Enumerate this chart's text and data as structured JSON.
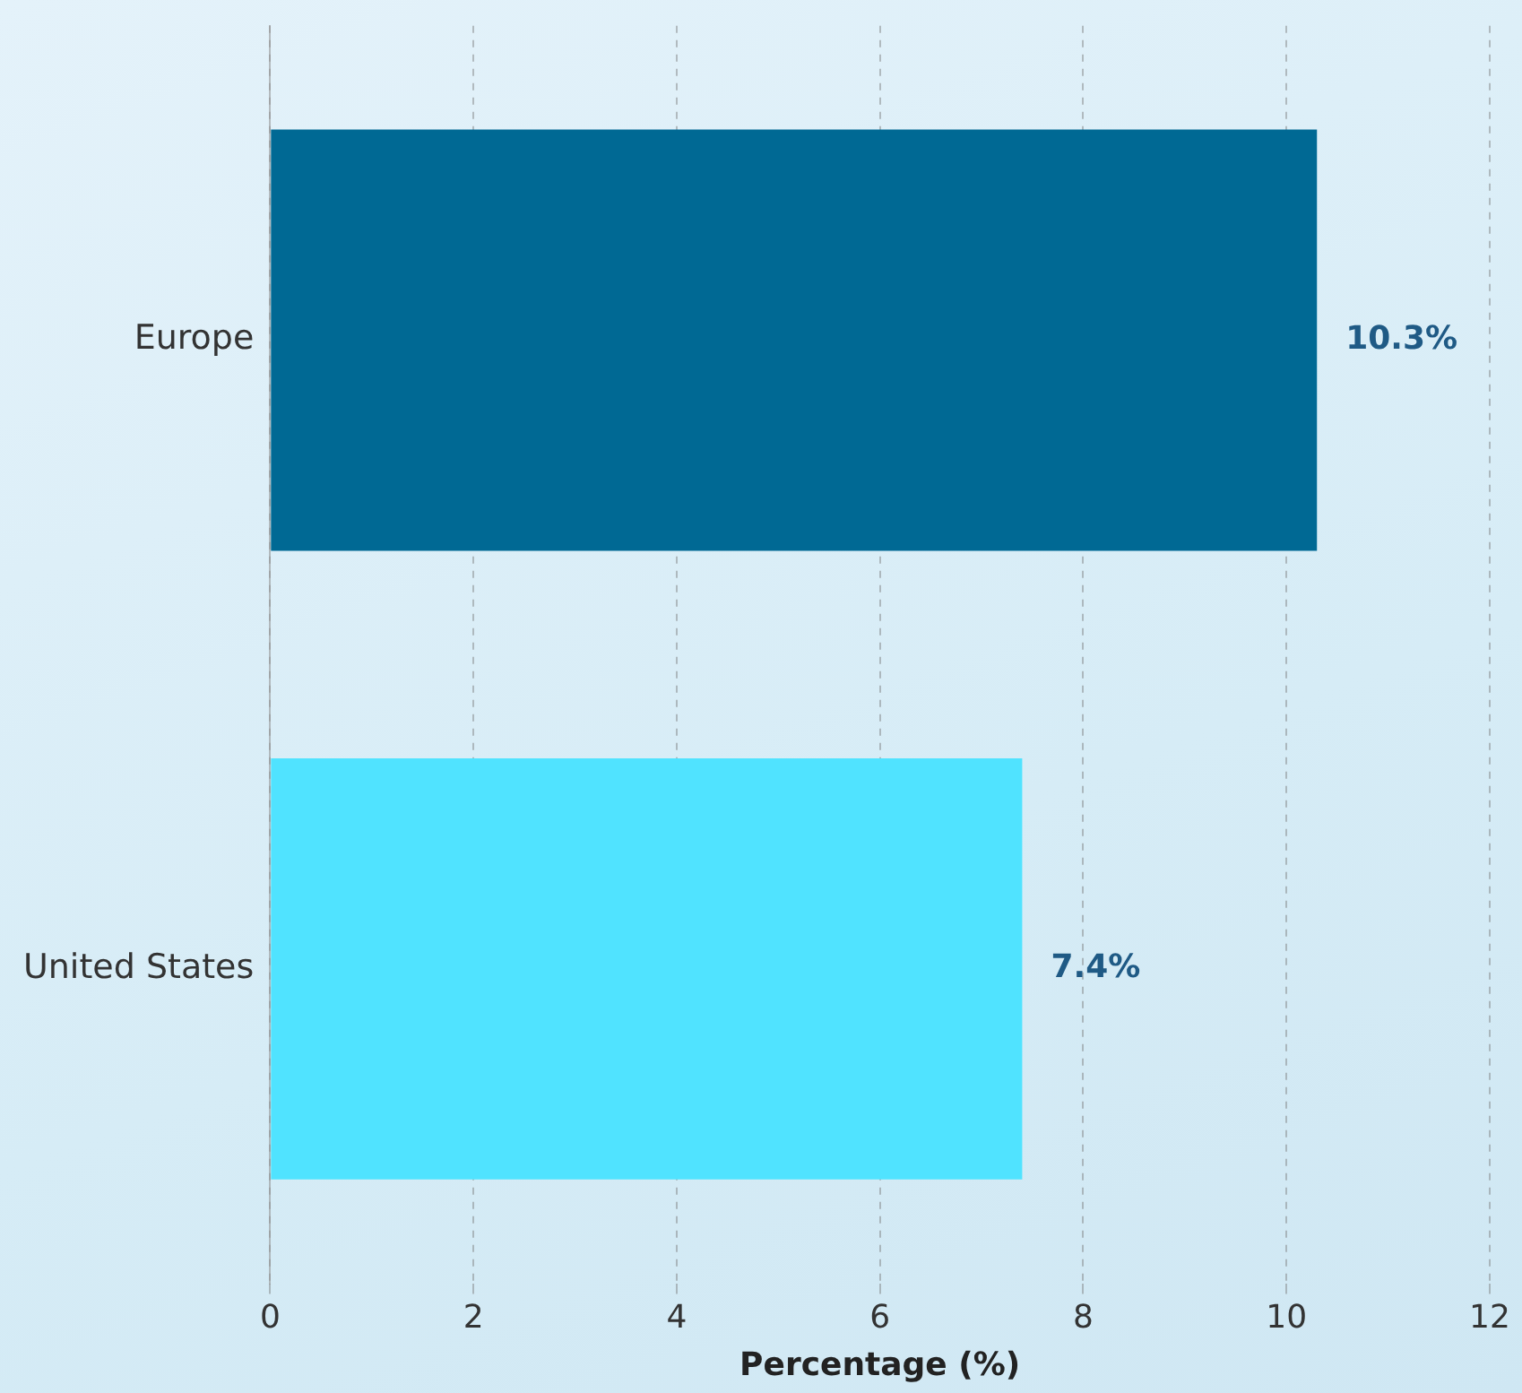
{
  "chart_data": {
    "type": "bar",
    "orientation": "horizontal",
    "xlabel": "Percentage (%)",
    "categories": [
      "Europe",
      "United States"
    ],
    "values": [
      10.3,
      7.4
    ],
    "colors": [
      "#006994",
      "#50e3ff"
    ],
    "value_labels": [
      "10.3%",
      "7.4%"
    ],
    "xlim": [
      0,
      12
    ],
    "xticks": [
      0,
      2,
      4,
      6,
      8,
      10,
      12
    ],
    "grid": "x",
    "legend": false
  }
}
